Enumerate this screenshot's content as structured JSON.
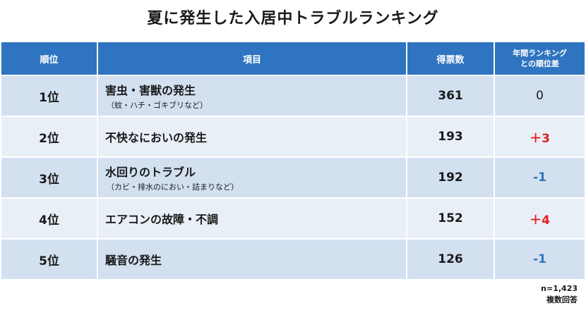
{
  "title": "夏に発生した入居中トラブルランキング",
  "table": {
    "headers": {
      "rank": "順位",
      "item": "項目",
      "votes": "得票数",
      "diff_line1": "年間ランキング",
      "diff_line2": "との順位差"
    },
    "rows": [
      {
        "rank": "1位",
        "item": "害虫・害獣の発生",
        "sub": "（蚊・ハチ・ゴキブリなど）",
        "votes": "361",
        "diff": "0",
        "diff_type": "zero"
      },
      {
        "rank": "2位",
        "item": "不快なにおいの発生",
        "sub": "",
        "votes": "193",
        "diff": "＋3",
        "diff_type": "up"
      },
      {
        "rank": "3位",
        "item": "水回りのトラブル",
        "sub": "（カビ・排水のにおい・詰まりなど）",
        "votes": "192",
        "diff": "-1",
        "diff_type": "down"
      },
      {
        "rank": "4位",
        "item": "エアコンの故障・不調",
        "sub": "",
        "votes": "152",
        "diff": "＋4",
        "diff_type": "up"
      },
      {
        "rank": "5位",
        "item": "騒音の発生",
        "sub": "",
        "votes": "126",
        "diff": "-1",
        "diff_type": "down"
      }
    ]
  },
  "notes": {
    "sample": "n=1,423",
    "method": "複数回答"
  },
  "colors": {
    "header_bg": "#2f74c0",
    "row_odd": "#d2e0f0",
    "row_even": "#e9eff7",
    "up": "#e02020",
    "down": "#2f74c0"
  }
}
